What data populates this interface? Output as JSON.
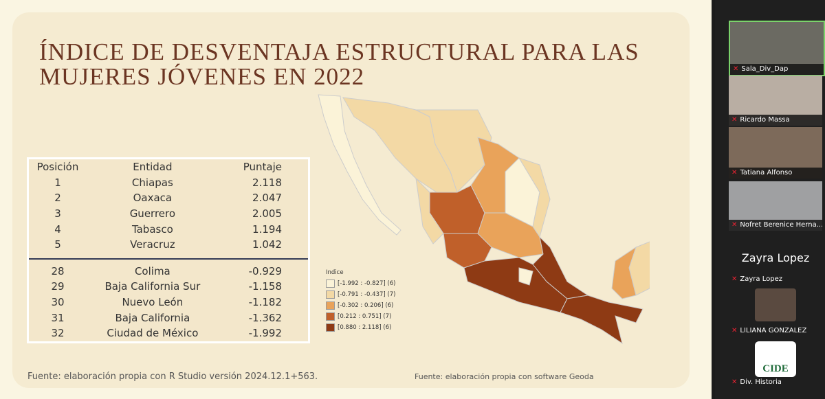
{
  "slide": {
    "title": "ÍNDICE DE DESVENTAJA ESTRUCTURAL PARA LAS MUJERES JÓVENES EN 2022",
    "table": {
      "header": [
        "Posición",
        "Entidad",
        "Puntaje"
      ],
      "top_rows": [
        [
          "1",
          "Chiapas",
          "2.118"
        ],
        [
          "2",
          "Oaxaca",
          "2.047"
        ],
        [
          "3",
          "Guerrero",
          "2.005"
        ],
        [
          "4",
          "Tabasco",
          "1.194"
        ],
        [
          "5",
          "Veracruz",
          "1.042"
        ]
      ],
      "bottom_rows": [
        [
          "28",
          "Colima",
          "-0.929"
        ],
        [
          "29",
          "Baja California Sur",
          "-1.158"
        ],
        [
          "30",
          "Nuevo León",
          "-1.182"
        ],
        [
          "31",
          "Baja California",
          "-1.362"
        ],
        [
          "32",
          "Ciudad de México",
          "-1.992"
        ]
      ]
    },
    "legend": {
      "title": "Indice",
      "items": [
        "[-1.992 : -0.827] (6)",
        "[-0.791 : -0.437] (7)",
        "[-0.302 : 0.206] (6)",
        "[0.212 : 0.751] (7)",
        "[0.880 : 2.118] (6)"
      ]
    },
    "source_left": "Fuente: elaboración propia con R Studio versión 2024.12.1+563.",
    "source_right": "Fuente: elaboración propia con software Geoda"
  },
  "participants": {
    "tiles": [
      "Sala_Div_Dap",
      "Ricardo Massa",
      "Tatiana Alfonso",
      "Nofret Berenice Herna...",
      "Zayra Lopez",
      "LILIANA GONZALEZ",
      "Div. Historia"
    ],
    "zayra_big": "Zayra Lopez",
    "logo": "CIDE"
  }
}
